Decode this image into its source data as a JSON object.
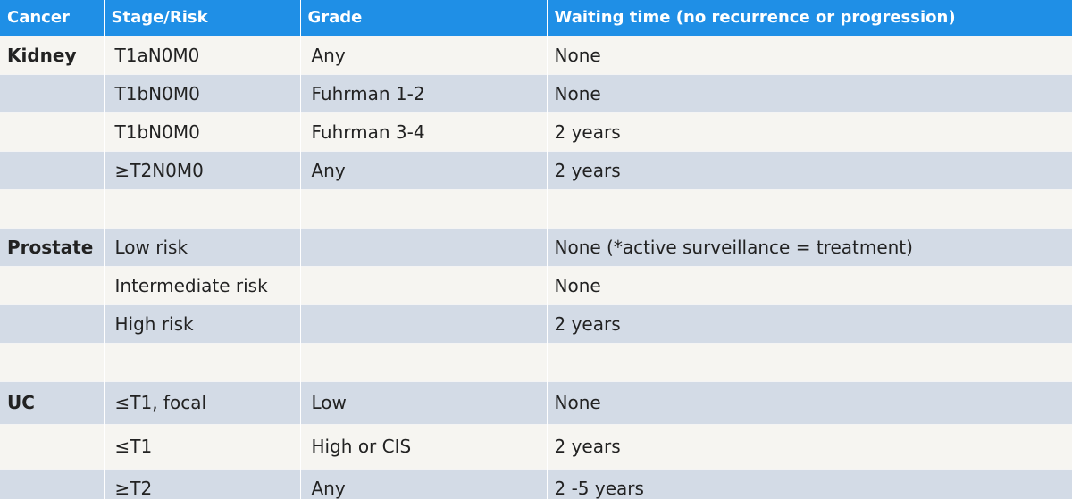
{
  "table": {
    "headers": [
      "Cancer",
      "Stage/Risk",
      "Grade",
      "Waiting time (no recurrence or progression)"
    ],
    "rows": [
      [
        "Kidney",
        "T1aN0M0",
        "Any",
        "None"
      ],
      [
        "",
        "T1bN0M0",
        "Fuhrman 1-2",
        "None"
      ],
      [
        "",
        "T1bN0M0",
        "Fuhrman 3-4",
        "2 years"
      ],
      [
        "",
        "≥T2N0M0",
        "Any",
        "2 years"
      ],
      [
        "",
        "",
        "",
        ""
      ],
      [
        "Prostate",
        "Low risk",
        "",
        "None (*active surveillance = treatment)"
      ],
      [
        "",
        "Intermediate risk",
        "",
        "None"
      ],
      [
        "",
        "High risk",
        "",
        "2 years"
      ],
      [
        "",
        "",
        "",
        ""
      ],
      [
        "UC",
        "≤T1, focal",
        "Low",
        "None"
      ],
      [
        "",
        "≤T1",
        "High or CIS",
        "2 years"
      ],
      [
        "",
        "≥T2",
        "Any",
        "2 -5 years"
      ]
    ]
  },
  "colors": {
    "header_bg": "#1f8fe6",
    "row_light": "#f6f5f1",
    "row_dark": "#d3dbe6"
  }
}
